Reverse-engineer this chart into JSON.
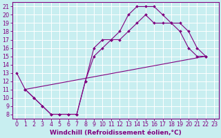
{
  "bg_color": "#c8eef0",
  "line_color": "#800080",
  "grid_color": "#ffffff",
  "xlabel": "Windchill (Refroidissement éolien,°C)",
  "xlabel_fontsize": 6.5,
  "tick_fontsize": 5.8,
  "xlim": [
    -0.5,
    23.5
  ],
  "ylim": [
    7.5,
    21.5
  ],
  "xticks": [
    0,
    1,
    2,
    3,
    4,
    5,
    6,
    7,
    8,
    9,
    10,
    11,
    12,
    13,
    14,
    15,
    16,
    17,
    18,
    19,
    20,
    21,
    22,
    23
  ],
  "yticks": [
    8,
    9,
    10,
    11,
    12,
    13,
    14,
    15,
    16,
    17,
    18,
    19,
    20,
    21
  ],
  "line1_x": [
    0,
    1,
    2,
    3,
    4,
    5,
    6,
    7,
    8,
    9,
    10,
    11,
    12,
    13,
    14,
    15,
    16,
    17,
    18,
    19,
    20,
    21,
    22
  ],
  "line1_y": [
    13,
    11,
    10,
    9,
    8,
    8,
    8,
    8,
    12,
    16,
    17,
    17,
    18,
    20,
    21,
    21,
    21,
    20,
    19,
    19,
    18,
    16,
    15
  ],
  "line2_x": [
    1,
    22
  ],
  "line2_y": [
    11,
    15
  ],
  "line3_x": [
    1,
    2,
    3,
    4,
    5,
    6,
    7,
    8,
    9,
    10,
    11,
    12,
    13,
    14,
    15,
    16,
    17,
    18,
    19,
    20,
    21,
    22
  ],
  "line3_y": [
    11,
    10,
    9,
    8,
    8,
    8,
    8,
    12,
    15,
    16,
    17,
    17,
    18,
    19,
    20,
    19,
    19,
    19,
    18,
    16,
    15,
    15
  ]
}
